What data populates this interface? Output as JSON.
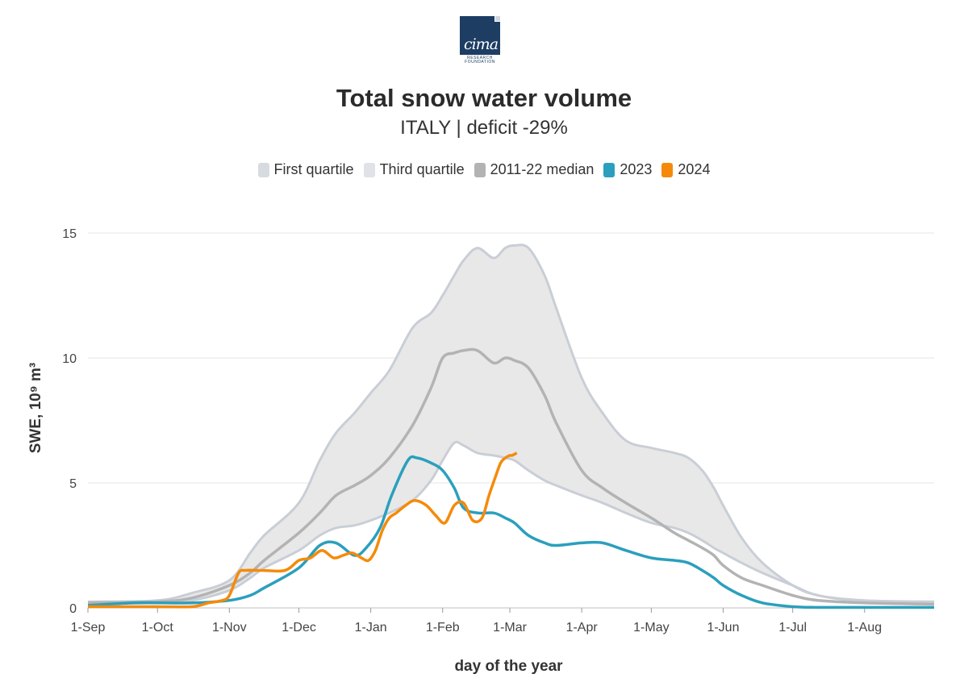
{
  "logo": {
    "word": "cima",
    "sub_line1": "RESEARCH",
    "sub_line2": "FOUNDATION"
  },
  "chart_data": {
    "type": "line",
    "title": "Total snow water volume",
    "subtitle": "ITALY | deficit -29%",
    "xlabel": "day of the year",
    "ylabel": "SWE, 10⁹ m³",
    "ylim": [
      0,
      16
    ],
    "yticks": [
      0,
      5,
      10,
      15
    ],
    "x_tick_labels": [
      "1-Sep",
      "1-Oct",
      "1-Nov",
      "1-Dec",
      "1-Jan",
      "1-Feb",
      "1-Mar",
      "1-Apr",
      "1-May",
      "1-Jun",
      "1-Jul",
      "1-Aug"
    ],
    "x_tick_days": [
      0,
      30,
      61,
      91,
      122,
      153,
      182,
      213,
      243,
      274,
      304,
      335
    ],
    "x_range_days": [
      0,
      365
    ],
    "grid": "horizontal",
    "legend_position": "top",
    "colors": {
      "quartile_fill": "#e8e8e8",
      "quartile_line": "#c9ced6",
      "median": "#b3b3b3",
      "y2023": "#2b9fbd",
      "y2024": "#f58a0a"
    },
    "series": [
      {
        "name": "First quartile",
        "x": [
          0,
          30,
          45,
          61,
          70,
          76,
          91,
          100,
          107,
          115,
          122,
          130,
          140,
          148,
          153,
          158,
          162,
          168,
          175,
          180,
          184,
          190,
          197,
          202,
          213,
          222,
          232,
          243,
          253,
          259,
          265,
          270,
          274,
          282,
          291,
          304,
          315,
          335,
          365
        ],
        "y": [
          0.15,
          0.2,
          0.3,
          0.7,
          1.2,
          1.6,
          2.3,
          2.9,
          3.2,
          3.3,
          3.5,
          3.8,
          4.3,
          5.1,
          5.9,
          6.6,
          6.5,
          6.2,
          6.1,
          6.0,
          5.9,
          5.5,
          5.1,
          4.9,
          4.5,
          4.2,
          3.8,
          3.4,
          3.2,
          3.0,
          2.7,
          2.4,
          2.2,
          1.8,
          1.4,
          0.9,
          0.5,
          0.25,
          0.15
        ]
      },
      {
        "name": "Third quartile",
        "x": [
          0,
          30,
          45,
          61,
          70,
          76,
          91,
          100,
          107,
          115,
          122,
          130,
          140,
          148,
          153,
          158,
          162,
          168,
          175,
          180,
          184,
          190,
          197,
          202,
          213,
          222,
          232,
          243,
          253,
          259,
          265,
          270,
          274,
          282,
          291,
          304,
          315,
          335,
          365
        ],
        "y": [
          0.25,
          0.3,
          0.6,
          1.1,
          2.2,
          2.9,
          4.2,
          5.9,
          7.0,
          7.8,
          8.6,
          9.5,
          11.2,
          11.8,
          12.5,
          13.3,
          13.9,
          14.4,
          14.0,
          14.4,
          14.5,
          14.4,
          13.3,
          12.0,
          9.2,
          7.8,
          6.7,
          6.4,
          6.2,
          6.0,
          5.5,
          4.8,
          4.1,
          2.8,
          1.8,
          0.9,
          0.5,
          0.3,
          0.25
        ]
      },
      {
        "name": "2011-22 median",
        "x": [
          0,
          30,
          45,
          61,
          70,
          76,
          91,
          100,
          107,
          115,
          122,
          130,
          140,
          148,
          153,
          158,
          162,
          168,
          175,
          180,
          184,
          190,
          197,
          202,
          213,
          222,
          232,
          243,
          253,
          259,
          265,
          270,
          274,
          282,
          291,
          304,
          315,
          335,
          365
        ],
        "y": [
          0.2,
          0.25,
          0.4,
          0.9,
          1.4,
          1.9,
          3.0,
          3.8,
          4.5,
          4.9,
          5.3,
          6.0,
          7.3,
          8.8,
          10.0,
          10.2,
          10.3,
          10.3,
          9.8,
          10.0,
          9.9,
          9.6,
          8.5,
          7.4,
          5.5,
          4.8,
          4.2,
          3.6,
          3.0,
          2.7,
          2.4,
          2.1,
          1.7,
          1.2,
          0.9,
          0.5,
          0.3,
          0.2,
          0.15
        ]
      },
      {
        "name": "2023",
        "x": [
          0,
          20,
          30,
          45,
          61,
          70,
          76,
          91,
          100,
          107,
          115,
          120,
          126,
          131,
          138,
          142,
          148,
          153,
          158,
          162,
          168,
          175,
          180,
          184,
          190,
          197,
          202,
          213,
          222,
          232,
          243,
          253,
          259,
          265,
          270,
          274,
          282,
          291,
          304,
          315,
          335,
          365
        ],
        "y": [
          0.1,
          0.2,
          0.2,
          0.2,
          0.3,
          0.5,
          0.8,
          1.6,
          2.5,
          2.6,
          2.1,
          2.4,
          3.2,
          4.5,
          5.9,
          6.0,
          5.8,
          5.5,
          4.8,
          4.0,
          3.8,
          3.8,
          3.6,
          3.4,
          2.9,
          2.6,
          2.5,
          2.6,
          2.6,
          2.3,
          2.0,
          1.9,
          1.8,
          1.5,
          1.2,
          0.9,
          0.5,
          0.2,
          0.05,
          0.02,
          0.02,
          0.02
        ]
      },
      {
        "name": "2024",
        "x": [
          0,
          15,
          30,
          45,
          52,
          58,
          61,
          65,
          68,
          75,
          85,
          91,
          96,
          101,
          106,
          110,
          114,
          118,
          121,
          124,
          127,
          130,
          133,
          137,
          141,
          146,
          150,
          154,
          158,
          162,
          166,
          170,
          173,
          176,
          178,
          180,
          182,
          183,
          185
        ],
        "y": [
          0.05,
          0.05,
          0.05,
          0.05,
          0.2,
          0.3,
          0.5,
          1.4,
          1.5,
          1.5,
          1.5,
          1.9,
          2.0,
          2.3,
          2.0,
          2.1,
          2.2,
          2.0,
          1.9,
          2.3,
          3.1,
          3.6,
          3.8,
          4.1,
          4.3,
          4.1,
          3.7,
          3.4,
          4.1,
          4.2,
          3.5,
          3.6,
          4.5,
          5.3,
          5.8,
          6.0,
          6.1,
          6.1,
          6.2
        ]
      }
    ]
  }
}
